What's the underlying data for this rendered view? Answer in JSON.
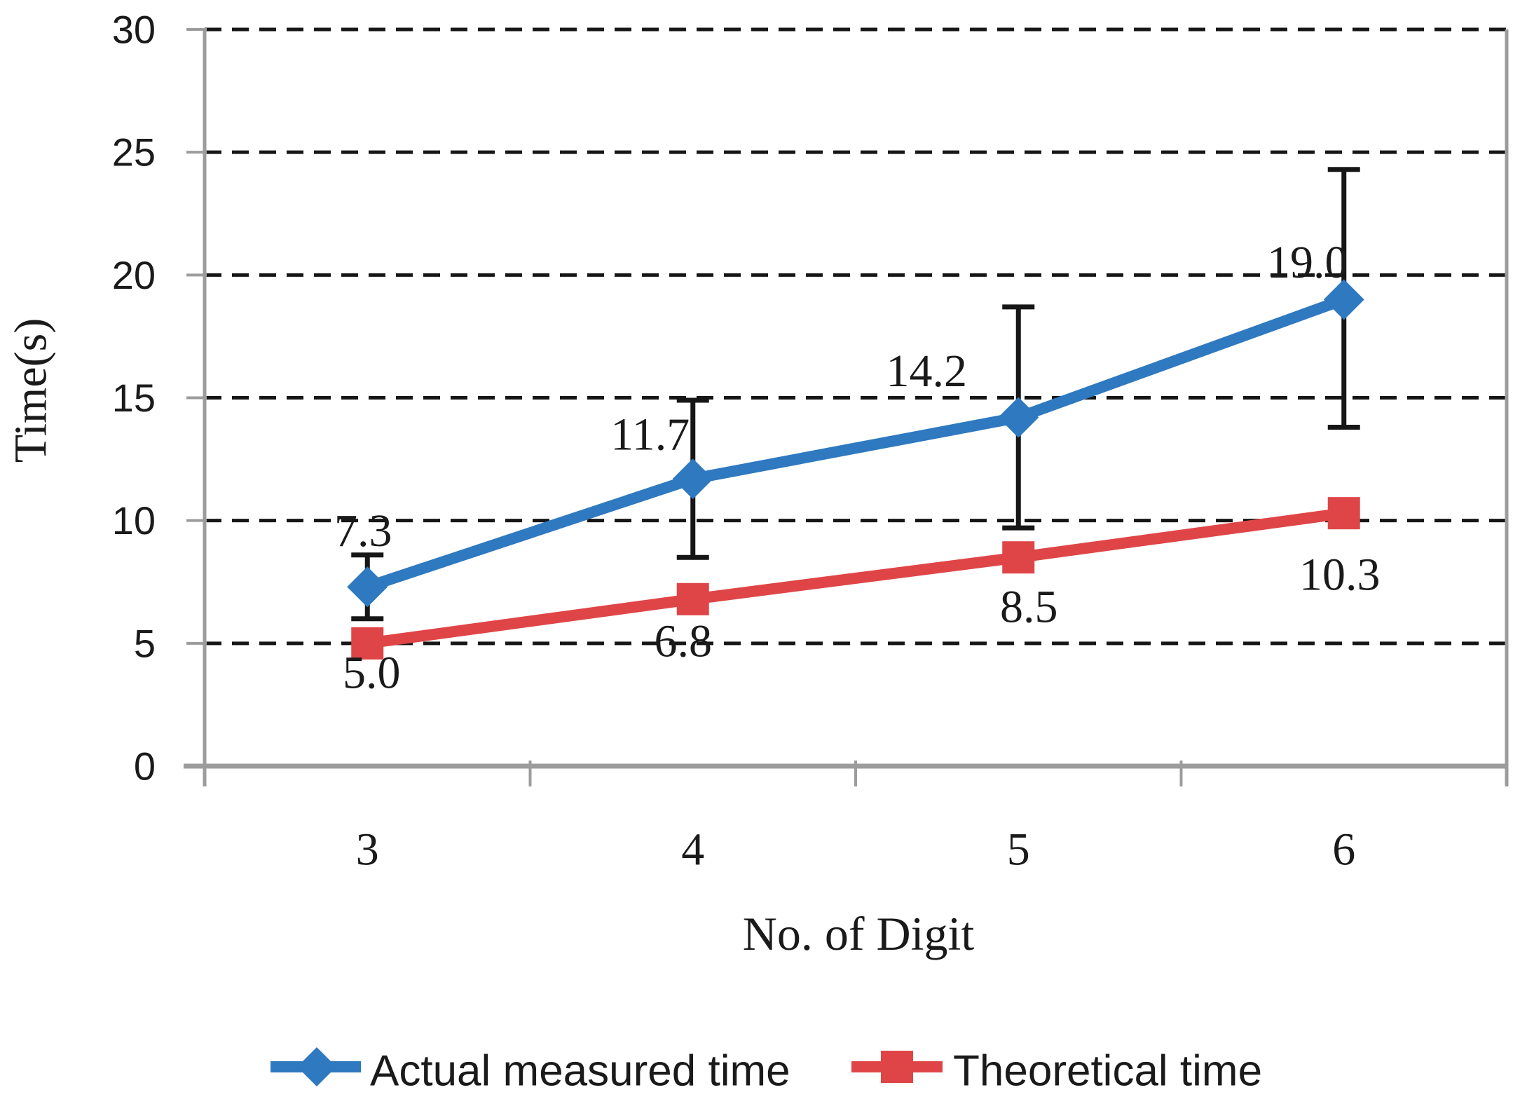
{
  "chart_data": {
    "type": "line",
    "title": "",
    "xlabel": "No. of Digit",
    "ylabel": "Time(s)",
    "categories": [
      "3",
      "4",
      "5",
      "6"
    ],
    "y_ticks": [
      0,
      5,
      10,
      15,
      20,
      25,
      30
    ],
    "ylim": [
      0,
      30
    ],
    "grid": {
      "horizontal": true,
      "style": "dashed"
    },
    "legend_position": "bottom",
    "series": [
      {
        "name": "Actual measured time",
        "color": "#2E79BF",
        "marker": "diamond",
        "values": [
          7.3,
          11.7,
          14.2,
          19.0
        ],
        "labels": [
          "7.3",
          "11.7",
          "14.2",
          "19.0"
        ],
        "error_low": [
          6.0,
          8.5,
          9.7,
          13.8
        ],
        "error_high": [
          8.6,
          14.9,
          18.7,
          24.3
        ]
      },
      {
        "name": "Theoretical time",
        "color": "#DF4547",
        "marker": "square",
        "values": [
          5.0,
          6.8,
          8.5,
          10.3
        ],
        "labels": [
          "5.0",
          "6.8",
          "8.5",
          "10.3"
        ]
      }
    ]
  },
  "colors": {
    "axis": "#9C9C9C",
    "grid": "#161616",
    "error_bar": "#161616",
    "text": "#1A1A1A",
    "background": "#FFFFFF"
  }
}
